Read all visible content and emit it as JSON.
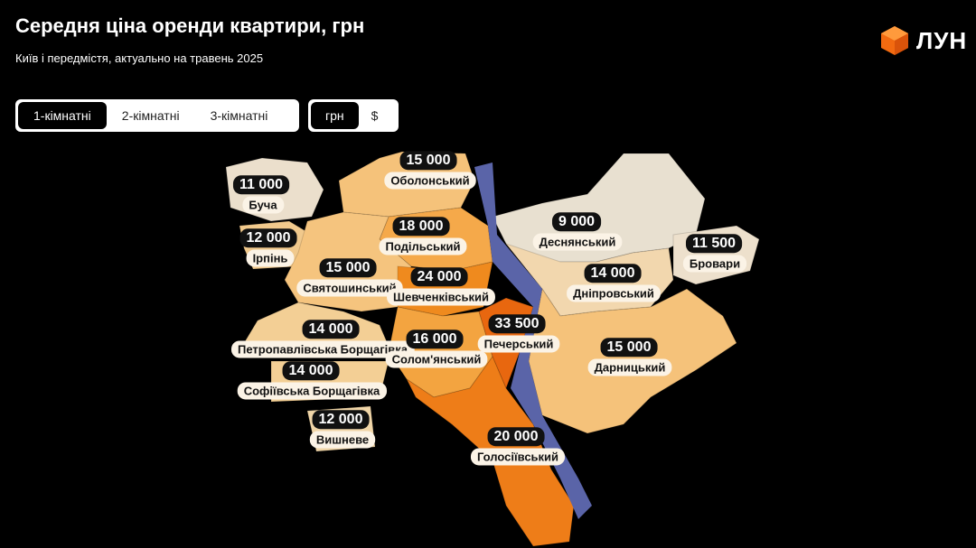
{
  "header": {
    "title": "Середня ціна оренди квартири, грн",
    "subtitle": "Київ і передмістя, актуально на травень 2025",
    "logo": "ЛУН"
  },
  "room_tabs": [
    "1-кімнатні",
    "2-кімнатні",
    "3-кімнатні"
  ],
  "currency_tabs": [
    "грн",
    "$"
  ],
  "regions": [
    {
      "price": "11 000",
      "name": "Буча",
      "color": "#ebdfcc"
    },
    {
      "price": "12 000",
      "name": "Ірпінь",
      "color": "#f1c98c"
    },
    {
      "price": "15 000",
      "name": "Оболонський",
      "color": "#f5c27a"
    },
    {
      "price": "18 000",
      "name": "Подільський",
      "color": "#f5a94a"
    },
    {
      "price": "15 000",
      "name": "Святошинський",
      "color": "#f5c47e"
    },
    {
      "price": "24 000",
      "name": "Шевченківський",
      "color": "#ef8a1e"
    },
    {
      "price": "14 000",
      "name": "Петропавлівська Борщагівка",
      "color": "#f3cf95"
    },
    {
      "price": "16 000",
      "name": "Солом'янський",
      "color": "#f3a440"
    },
    {
      "price": "14 000",
      "name": "Софіївська Борщагівка",
      "color": "#f3cf95"
    },
    {
      "price": "12 000",
      "name": "Вишневе",
      "color": "#f1d6a8"
    },
    {
      "price": "33 500",
      "name": "Печерський",
      "color": "#e8670f"
    },
    {
      "price": "20 000",
      "name": "Голосіївський",
      "color": "#ee7d18"
    },
    {
      "price": "9 000",
      "name": "Деснянський",
      "color": "#e8e0d0"
    },
    {
      "price": "14 000",
      "name": "Дніпровський",
      "color": "#f2d7ae"
    },
    {
      "price": "11 500",
      "name": "Бровари",
      "color": "#ede0cc"
    },
    {
      "price": "15 000",
      "name": "Дарницький",
      "color": "#f5c27a"
    }
  ]
}
